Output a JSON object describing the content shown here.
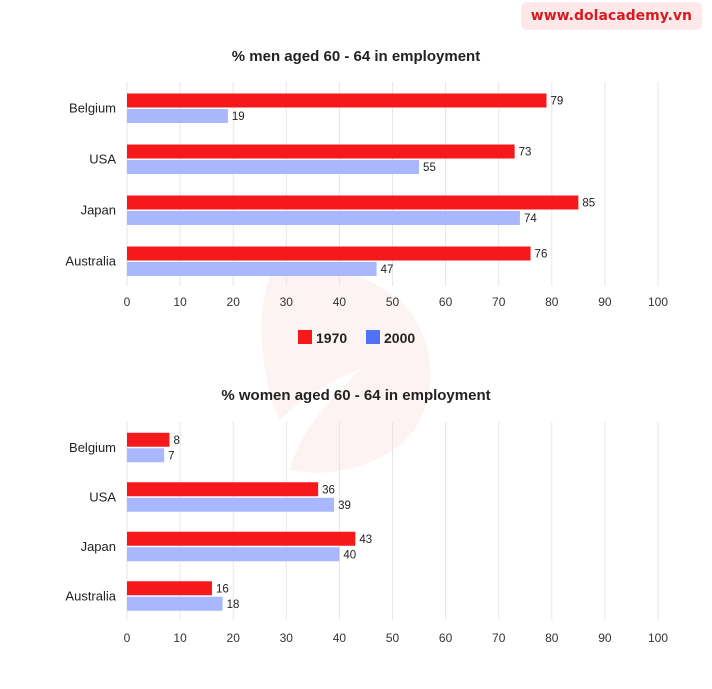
{
  "watermark": "www.dolacademy.vn",
  "colors": {
    "s1970": "#f5191c",
    "s2000": "#a9b7ff",
    "legend2000": "#4f72f7",
    "grid": "#e6e6e6"
  },
  "legend": [
    "1970",
    "2000"
  ],
  "chart_data": [
    {
      "type": "bar",
      "orientation": "horizontal",
      "title": "% men aged 60 - 64 in employment",
      "categories": [
        "Belgium",
        "USA",
        "Japan",
        "Australia"
      ],
      "series": [
        {
          "name": "1970",
          "values": [
            79,
            73,
            85,
            76
          ]
        },
        {
          "name": "2000",
          "values": [
            19,
            55,
            74,
            47
          ]
        }
      ],
      "xlim": [
        0,
        100
      ],
      "xticks": [
        0,
        10,
        20,
        30,
        40,
        50,
        60,
        70,
        80,
        90,
        100
      ],
      "grid": true,
      "legend_position": "bottom"
    },
    {
      "type": "bar",
      "orientation": "horizontal",
      "title": "% women aged 60 - 64 in employment",
      "categories": [
        "Belgium",
        "USA",
        "Japan",
        "Australia"
      ],
      "series": [
        {
          "name": "1970",
          "values": [
            8,
            36,
            43,
            16
          ]
        },
        {
          "name": "2000",
          "values": [
            7,
            39,
            40,
            18
          ]
        }
      ],
      "xlim": [
        0,
        100
      ],
      "xticks": [
        0,
        10,
        20,
        30,
        40,
        50,
        60,
        70,
        80,
        90,
        100
      ],
      "grid": true
    }
  ]
}
